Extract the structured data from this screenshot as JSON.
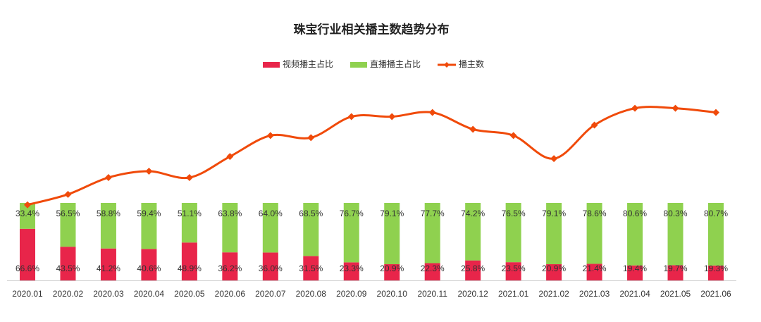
{
  "chart_data": {
    "type": "bar",
    "stacked": true,
    "title": "珠宝行业相关播主数趋势分布",
    "categories": [
      "2020.01",
      "2020.02",
      "2020.03",
      "2020.04",
      "2020.05",
      "2020.06",
      "2020.07",
      "2020.08",
      "2020.09",
      "2020.10",
      "2020.11",
      "2020.12",
      "2021.01",
      "2021.02",
      "2021.03",
      "2021.04",
      "2021.05",
      "2021.06"
    ],
    "ylim": [
      0,
      100
    ],
    "y2lim": [
      0,
      100
    ],
    "series": [
      {
        "name": "视频播主占比",
        "color": "#e8254a",
        "values": [
          66.6,
          43.5,
          41.2,
          40.6,
          48.9,
          36.2,
          36.0,
          31.5,
          23.3,
          20.9,
          22.3,
          25.8,
          23.5,
          20.9,
          21.4,
          19.4,
          19.7,
          19.3
        ],
        "value_labels": [
          "66.6%",
          "43.5%",
          "41.2%",
          "40.6%",
          "48.9%",
          "36.2%",
          "36.0%",
          "31.5%",
          "23.3%",
          "20.9%",
          "22.3%",
          "25.8%",
          "23.5%",
          "20.9%",
          "21.4%",
          "19.4%",
          "19.7%",
          "19.3%"
        ]
      },
      {
        "name": "直播播主占比",
        "color": "#8fd14f",
        "values": [
          33.4,
          56.5,
          58.8,
          59.4,
          51.1,
          63.8,
          64.0,
          68.5,
          76.7,
          79.1,
          77.7,
          74.2,
          76.5,
          79.1,
          78.6,
          80.6,
          80.3,
          80.7
        ],
        "value_labels": [
          "33.4%",
          "56.5%",
          "58.8%",
          "59.4%",
          "51.1%",
          "63.8%",
          "64.0%",
          "68.5%",
          "76.7%",
          "79.1%",
          "77.7%",
          "74.2%",
          "76.5%",
          "79.1%",
          "78.6%",
          "80.6%",
          "80.3%",
          "80.7%"
        ]
      },
      {
        "name": "播主数",
        "color": "#f04a0a",
        "axis": "y2",
        "values": [
          36,
          41,
          49,
          52,
          49,
          59,
          69,
          68,
          78,
          78,
          80,
          72,
          69,
          58,
          74,
          82,
          82,
          80
        ]
      }
    ]
  }
}
